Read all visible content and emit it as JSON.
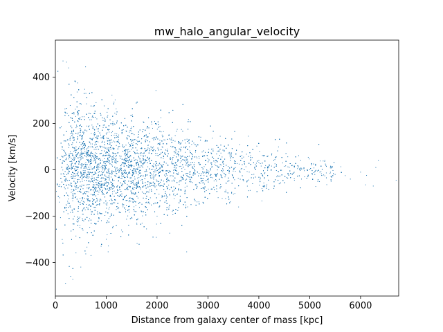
{
  "chart_data": {
    "type": "scatter",
    "title": "mw_halo_angular_velocity",
    "xlabel": "Distance from galaxy center of mass [kpc]",
    "ylabel": "Velocity [km/s]",
    "xlim": [
      0,
      6750
    ],
    "ylim": [
      -545,
      560
    ],
    "x_ticks": [
      0,
      1000,
      2000,
      3000,
      4000,
      5000,
      6000
    ],
    "x_tick_labels": [
      "0",
      "1000",
      "2000",
      "3000",
      "4000",
      "5000",
      "6000"
    ],
    "y_ticks": [
      -400,
      -200,
      0,
      200,
      400
    ],
    "y_tick_labels": [
      "−400",
      "−200",
      "0",
      "200",
      "400"
    ],
    "grid": false,
    "marker_color": "#1f77b4",
    "series": [
      {
        "points_note_sampled": false,
        "x": [
          150,
          220,
          260,
          400,
          600,
          800,
          1200,
          1500,
          1800,
          2100,
          2500,
          2800,
          3100,
          3400,
          3700,
          4000,
          4200,
          4500,
          4800,
          5000,
          5200,
          5500,
          5800,
          6000,
          6300,
          6350,
          6700,
          200,
          300,
          500,
          700,
          900,
          1000,
          1300,
          1600,
          2000,
          2300,
          2600,
          2900,
          3200,
          3500,
          3800,
          4100,
          4400,
          4700,
          4900,
          5100,
          5400,
          5700,
          6100,
          6250
        ],
        "y": [
          470,
          465,
          440,
          380,
          330,
          290,
          240,
          210,
          180,
          150,
          125,
          110,
          90,
          70,
          55,
          40,
          20,
          15,
          5,
          0,
          -10,
          -20,
          -40,
          -10,
          10,
          40,
          -45,
          -490,
          -460,
          -420,
          -370,
          -330,
          -300,
          -260,
          -230,
          -200,
          -180,
          -160,
          -140,
          -120,
          -105,
          -90,
          -75,
          -60,
          -45,
          -30,
          -20,
          -15,
          -25,
          -65,
          -70
        ]
      }
    ]
  }
}
